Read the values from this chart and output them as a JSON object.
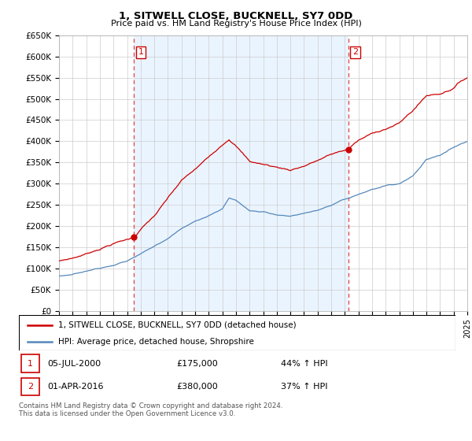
{
  "title": "1, SITWELL CLOSE, BUCKNELL, SY7 0DD",
  "subtitle": "Price paid vs. HM Land Registry's House Price Index (HPI)",
  "legend_line1": "1, SITWELL CLOSE, BUCKNELL, SY7 0DD (detached house)",
  "legend_line2": "HPI: Average price, detached house, Shropshire",
  "annotation1_date": "05-JUL-2000",
  "annotation1_price": "£175,000",
  "annotation1_hpi": "44% ↑ HPI",
  "annotation2_date": "01-APR-2016",
  "annotation2_price": "£380,000",
  "annotation2_hpi": "37% ↑ HPI",
  "footer": "Contains HM Land Registry data © Crown copyright and database right 2024.\nThis data is licensed under the Open Government Licence v3.0.",
  "red_color": "#cc0000",
  "blue_color": "#5588bb",
  "blue_fill": "#ddeeff",
  "dashed_red": "#dd4444",
  "ylim_min": 0,
  "ylim_max": 650000,
  "yticks": [
    0,
    50000,
    100000,
    150000,
    200000,
    250000,
    300000,
    350000,
    400000,
    450000,
    500000,
    550000,
    600000,
    650000
  ],
  "ytick_labels": [
    "£0",
    "£50K",
    "£100K",
    "£150K",
    "£200K",
    "£250K",
    "£300K",
    "£350K",
    "£400K",
    "£450K",
    "£500K",
    "£550K",
    "£600K",
    "£650K"
  ],
  "purchase1_x": 2000.5,
  "purchase1_y": 175000,
  "purchase2_x": 2016.25,
  "purchase2_y": 380000,
  "xmin": 1995,
  "xmax": 2025
}
